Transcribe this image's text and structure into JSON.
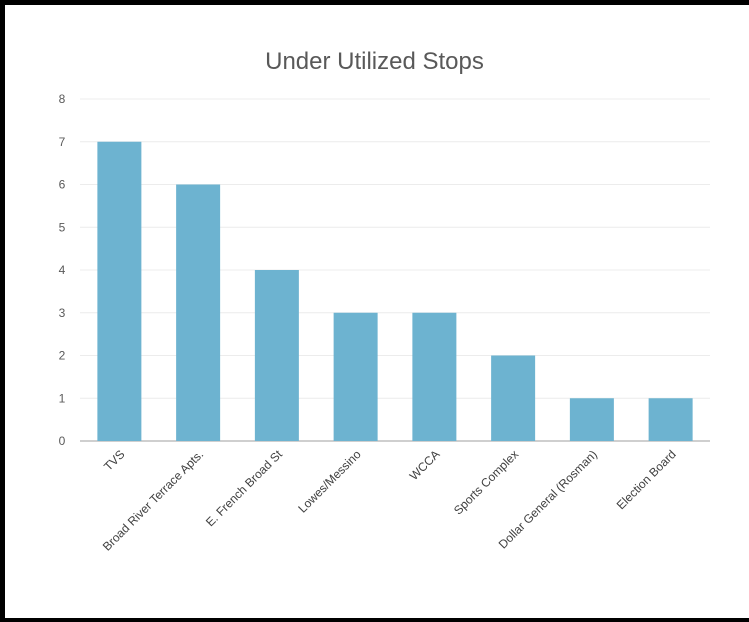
{
  "chart_data": {
    "type": "bar",
    "title": "Under Utilized Stops",
    "categories": [
      "TVS",
      "Broad River Terrace Apts.",
      "E. French Broad St",
      "Lowes/Messino",
      "WCCA",
      "Sports Complex",
      "Dollar General (Rosman)",
      "Election Board"
    ],
    "values": [
      7,
      6,
      4,
      3,
      3,
      2,
      1,
      1
    ],
    "ylim": [
      0,
      8
    ],
    "yticks": [
      "0",
      "1",
      "2",
      "3",
      "4",
      "5",
      "6",
      "7",
      "8"
    ],
    "xlabel": "",
    "ylabel": "",
    "grid": true,
    "legend": "none",
    "bar_color": "#6db3d0",
    "grid_color": "#ececec",
    "axis_color": "#bfbfbf"
  }
}
